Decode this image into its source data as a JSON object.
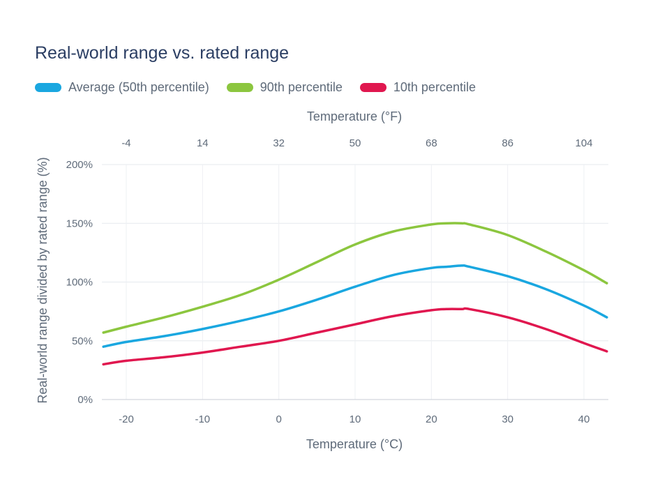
{
  "chart_data": {
    "type": "line",
    "title": "Real-world range vs. rated range",
    "xlabel": "Temperature (°C)",
    "x2label": "Temperature (°F)",
    "ylabel": "Real-world range divided by rated range (%)",
    "xlim": [
      -23.2,
      43.2
    ],
    "ylim": [
      0,
      200
    ],
    "x_ticks": [
      -20,
      -10,
      0,
      10,
      20,
      30,
      40
    ],
    "x_tick_labels": [
      "-20",
      "-10",
      "0",
      "10",
      "20",
      "30",
      "40"
    ],
    "x2_ticks": [
      -20,
      -10,
      0,
      10,
      20,
      30,
      40
    ],
    "x2_tick_labels": [
      "-4",
      "14",
      "32",
      "50",
      "68",
      "86",
      "104"
    ],
    "y_ticks": [
      0,
      50,
      100,
      150,
      200
    ],
    "y_tick_labels": [
      "0%",
      "50%",
      "100%",
      "150%",
      "200%"
    ],
    "grid": true,
    "legend_position": "top-left",
    "x": [
      -23,
      -20,
      -15,
      -10,
      -5,
      0,
      5,
      10,
      15,
      20,
      22,
      24,
      25,
      30,
      35,
      40,
      43
    ],
    "series": [
      {
        "name": "Average (50th percentile)",
        "color": "#1aa7e0",
        "values": [
          45,
          49,
          54,
          60,
          67,
          75,
          85,
          96,
          106,
          112,
          113,
          114,
          113,
          105,
          94,
          80,
          70
        ]
      },
      {
        "name": "90th percentile",
        "color": "#8cc63f",
        "values": [
          57,
          62,
          70,
          79,
          89,
          102,
          117,
          132,
          143,
          149,
          150,
          150,
          149,
          140,
          126,
          110,
          99
        ]
      },
      {
        "name": "10th percentile",
        "color": "#e0174f",
        "values": [
          30,
          33,
          36,
          40,
          45,
          50,
          57,
          64,
          71,
          76,
          77,
          77,
          77,
          70,
          60,
          48,
          41
        ]
      }
    ]
  }
}
